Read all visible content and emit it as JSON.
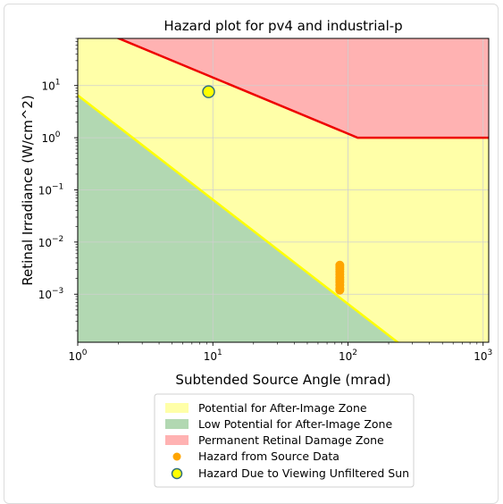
{
  "chart_data": {
    "type": "scatter",
    "title": "Hazard plot for pv4 and industrial-p",
    "xlabel": "Subtended Source Angle (mrad)",
    "ylabel": "Retinal Irradiance (W/cm^2)",
    "x_scale": "log",
    "y_scale": "log",
    "xlim": [
      1,
      1100
    ],
    "ylim": [
      0.00012,
      80
    ],
    "grid": true,
    "x_ticks": [
      {
        "value": 1,
        "base": "10",
        "exp": "0"
      },
      {
        "value": 10,
        "base": "10",
        "exp": "1"
      },
      {
        "value": 100,
        "base": "10",
        "exp": "2"
      },
      {
        "value": 1000,
        "base": "10",
        "exp": "3"
      }
    ],
    "y_ticks": [
      {
        "value": 10,
        "base": "10",
        "exp": "1"
      },
      {
        "value": 1,
        "base": "10",
        "exp": "0"
      },
      {
        "value": 0.1,
        "base": "10",
        "exp": "−1"
      },
      {
        "value": 0.01,
        "base": "10",
        "exp": "−2"
      },
      {
        "value": 0.001,
        "base": "10",
        "exp": "−3"
      }
    ],
    "zones": [
      {
        "name": "Potential for After-Image Zone",
        "color": "#ffffa8"
      },
      {
        "name": "Low Potential for After-Image Zone",
        "color": "#b2d8b2"
      },
      {
        "name": "Permanent Retinal Damage Zone",
        "color": "#ffb2b2"
      }
    ],
    "boundary_lines": {
      "after_image": {
        "color": "#ffff00",
        "points": [
          [
            1,
            6.5
          ],
          [
            1100,
            5.4e-06
          ]
        ]
      },
      "retinal_damage": {
        "color": "#ee0000",
        "points": [
          [
            1,
            170
          ],
          [
            118,
            1.0
          ],
          [
            1100,
            1.0
          ]
        ]
      }
    },
    "series": [
      {
        "name": "Hazard from Source Data",
        "color": "#ffa500",
        "points": [
          [
            87,
            0.0036
          ],
          [
            87,
            0.0033
          ],
          [
            87,
            0.003
          ],
          [
            87,
            0.0027
          ],
          [
            87,
            0.0024
          ],
          [
            87,
            0.0021
          ],
          [
            87,
            0.0019
          ],
          [
            87,
            0.0017
          ],
          [
            87,
            0.0015
          ],
          [
            87,
            0.0013
          ],
          [
            87,
            0.0012
          ]
        ]
      },
      {
        "name": "Hazard Due to Viewing Unfiltered Sun",
        "color": "#ffff00",
        "edge_color": "#2f6f7f",
        "points": [
          [
            9.3,
            7.6
          ]
        ]
      }
    ],
    "legend_position": "bottom-center"
  }
}
